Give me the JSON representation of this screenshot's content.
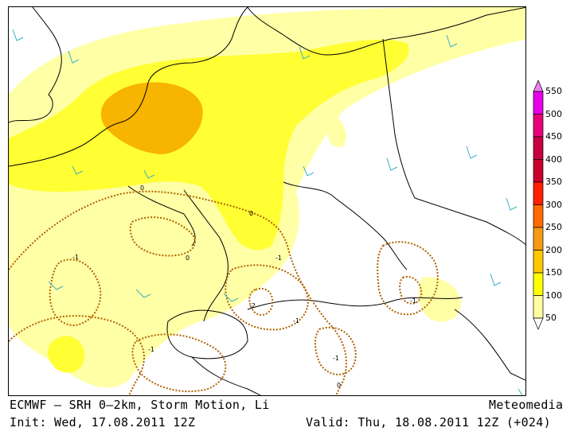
{
  "header": {
    "title_left": "ECMWF – SRH 0–2km, Storm Motion, Li",
    "brand": "Meteomedia",
    "init": "Init: Wed, 17.08.2011 12Z",
    "valid": "Valid: Thu, 18.08.2011 12Z (+024)"
  },
  "legend": {
    "levels": [
      "550",
      "500",
      "450",
      "400",
      "350",
      "300",
      "250",
      "200",
      "150",
      "100",
      "50"
    ],
    "colors": [
      "#f07ef0",
      "#e800e8",
      "#e8007a",
      "#c80040",
      "#c8002a",
      "#ff2000",
      "#ff6a00",
      "#f59a14",
      "#ffc800",
      "#ffff00",
      "#ffffa0"
    ]
  },
  "contour_labels": [
    "0",
    "0",
    "-1",
    "0",
    "-1",
    "-2",
    "-1",
    "-1",
    "-1",
    "-1",
    "0"
  ],
  "colors": {
    "srh_50": "#ffffa6",
    "srh_100": "#ffff33",
    "srh_150": "#f7b400",
    "lifted_index_line": "#b06000",
    "wind_barb": "#3ab0c8"
  }
}
